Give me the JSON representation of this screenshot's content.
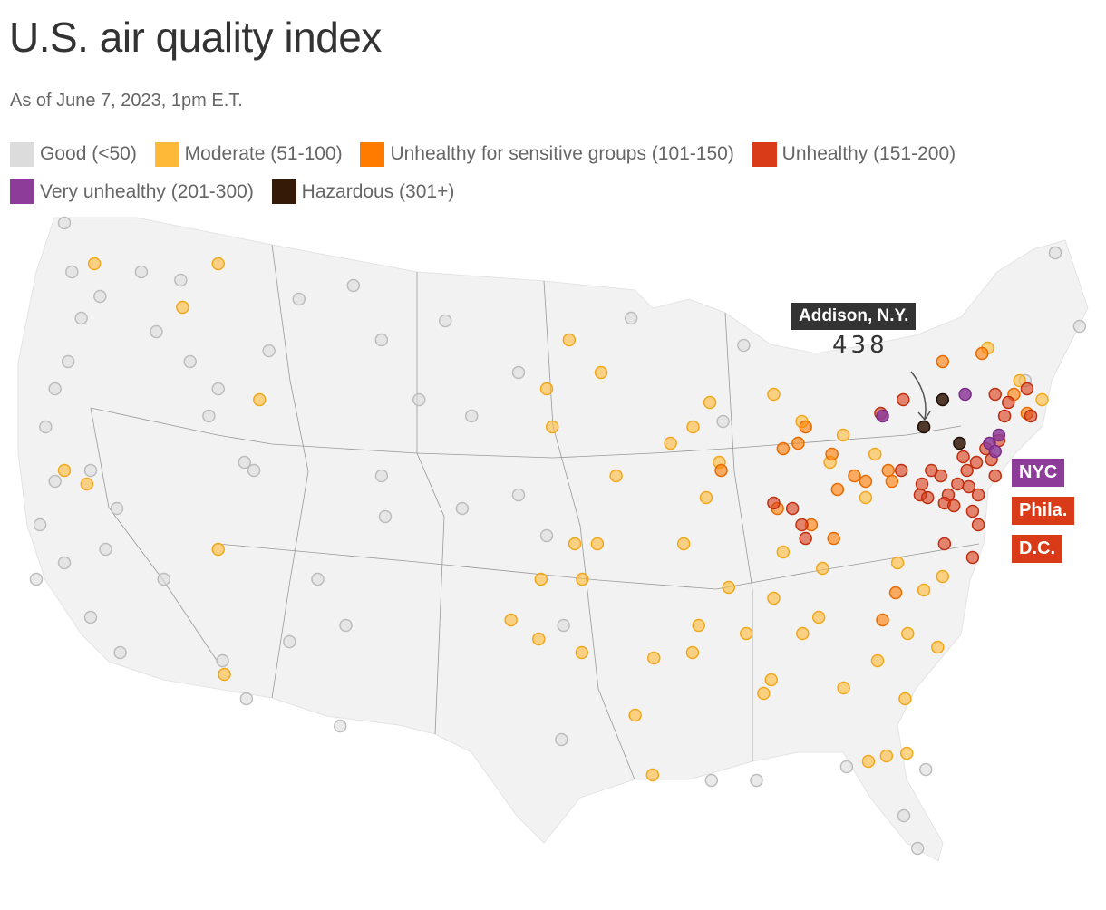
{
  "title": "U.S. air quality index",
  "subtitle": "As of June 7, 2023, 1pm E.T.",
  "legend": [
    {
      "label": "Good (<50)",
      "color": "#dcdcdc"
    },
    {
      "label": "Moderate (51-100)",
      "color": "#ffb938"
    },
    {
      "label": "Unhealthy for sensitive groups (101-150)",
      "color": "#ff7b00"
    },
    {
      "label": "Unhealthy (151-200)",
      "color": "#d93a17"
    },
    {
      "label": "Very unhealthy (201-300)",
      "color": "#8d3c99"
    },
    {
      "label": "Hazardous (301+)",
      "color": "#351a08"
    }
  ],
  "callout": {
    "place": "Addison, N.Y.",
    "value": "438"
  },
  "city_labels": [
    {
      "label": "NYC",
      "color": "#8d3c99"
    },
    {
      "label": "Phila.",
      "color": "#d93a17"
    },
    {
      "label": "D.C.",
      "color": "#d93a17"
    }
  ],
  "stations": [
    [
      -123.4,
      48.9,
      0
    ],
    [
      -123.0,
      47.1,
      0
    ],
    [
      -122.5,
      45.4,
      0
    ],
    [
      -123.2,
      43.8,
      0
    ],
    [
      -124.4,
      41.4,
      0
    ],
    [
      -123.9,
      39.4,
      0
    ],
    [
      -124.7,
      37.8,
      0
    ],
    [
      -123.4,
      36.4,
      0
    ],
    [
      -122,
      34.4,
      0
    ],
    [
      -120.6,
      33.1,
      0
    ],
    [
      -119.3,
      47.1,
      0
    ],
    [
      -117.2,
      46.8,
      0
    ],
    [
      -116.7,
      43.8,
      0
    ],
    [
      -115.2,
      42.8,
      0
    ],
    [
      -115.7,
      41.8,
      0
    ],
    [
      -113.3,
      39.8,
      0
    ],
    [
      -113.8,
      40.1,
      0
    ],
    [
      -110.9,
      46.1,
      0
    ],
    [
      -108,
      46.6,
      0
    ],
    [
      -106.5,
      44.6,
      0
    ],
    [
      -103.1,
      45.3,
      0
    ],
    [
      -99.2,
      43.4,
      0
    ],
    [
      -101.7,
      41.8,
      0
    ],
    [
      -106.5,
      39.6,
      0
    ],
    [
      -106.3,
      38.1,
      0
    ],
    [
      -109.9,
      35.8,
      0
    ],
    [
      -108.4,
      34.1,
      0
    ],
    [
      -109.4,
      30.4,
      0
    ],
    [
      -118.1,
      35.8,
      0
    ],
    [
      -115.2,
      32.8,
      0
    ],
    [
      -114.2,
      31.4,
      0
    ],
    [
      -99.2,
      38.9,
      0
    ],
    [
      -97.7,
      37.4,
      0
    ],
    [
      -96.8,
      34.1,
      0
    ],
    [
      -97.7,
      29.9,
      0
    ],
    [
      -87.2,
      44.4,
      0
    ],
    [
      -93.2,
      45.4,
      0
    ],
    [
      -88.3,
      41.6,
      0
    ],
    [
      -70.6,
      47.8,
      0
    ],
    [
      -69.3,
      45.1,
      0
    ],
    [
      -72.2,
      43.1,
      0
    ],
    [
      -78.5,
      28.8,
      0
    ],
    [
      -80,
      27.1,
      0
    ],
    [
      -79.5,
      25.9,
      0
    ],
    [
      -82.7,
      28.9,
      0
    ],
    [
      -87.6,
      28.4,
      0
    ],
    [
      -90,
      28.4,
      0
    ],
    [
      -120.6,
      38.4,
      0
    ],
    [
      -123.9,
      42.8,
      0
    ],
    [
      -122,
      39.8,
      0
    ],
    [
      -124.9,
      35.8,
      0
    ],
    [
      -121.5,
      46.2,
      0
    ],
    [
      -118.5,
      44.9,
      0
    ],
    [
      -112.5,
      44.2,
      0
    ],
    [
      -104.5,
      42.4,
      0
    ],
    [
      -102.2,
      38.4,
      0
    ],
    [
      -111.5,
      33.5,
      0
    ],
    [
      -121.2,
      36.9,
      0
    ],
    [
      -115.2,
      47.4,
      1
    ],
    [
      -121.8,
      47.4,
      1
    ],
    [
      -117.1,
      45.8,
      1
    ],
    [
      -113,
      42.4,
      1
    ],
    [
      -122.2,
      39.3,
      1
    ],
    [
      -123.4,
      39.8,
      1
    ],
    [
      -115.2,
      36.9,
      1
    ],
    [
      -115.2,
      32.3,
      1
    ],
    [
      -96.5,
      44.6,
      1
    ],
    [
      -94.8,
      43.4,
      1
    ],
    [
      -97.7,
      42.8,
      1
    ],
    [
      -97.4,
      41.4,
      1
    ],
    [
      -94,
      39.6,
      1
    ],
    [
      -96.2,
      37.1,
      1
    ],
    [
      -95,
      37.1,
      1
    ],
    [
      -98,
      35.8,
      1
    ],
    [
      -95.8,
      35.8,
      1
    ],
    [
      -99.6,
      34.3,
      1
    ],
    [
      -98.2,
      33.6,
      1
    ],
    [
      -96,
      33.1,
      1
    ],
    [
      -93.6,
      30.8,
      1
    ],
    [
      -93.1,
      28.6,
      1
    ],
    [
      -92.2,
      32.9,
      1
    ],
    [
      -89,
      42.3,
      1
    ],
    [
      -89.9,
      41.4,
      1
    ],
    [
      -91.1,
      40.8,
      1
    ],
    [
      -90.4,
      37.1,
      1
    ],
    [
      -89.2,
      38.8,
      1
    ],
    [
      -88.5,
      40.1,
      1
    ],
    [
      -85.6,
      42.6,
      1
    ],
    [
      -84.1,
      41.6,
      1
    ],
    [
      -85.1,
      36.8,
      1
    ],
    [
      -85.6,
      35.1,
      1
    ],
    [
      -87.1,
      33.8,
      1
    ],
    [
      -86.1,
      32.1,
      1
    ],
    [
      -86.6,
      31.6,
      1
    ],
    [
      -84.1,
      33.8,
      1
    ],
    [
      -83.2,
      34.4,
      1
    ],
    [
      -82.3,
      31.8,
      1
    ],
    [
      -80.3,
      32.8,
      1
    ],
    [
      -79.1,
      31.4,
      1
    ],
    [
      -79.4,
      29.4,
      1
    ],
    [
      -81.5,
      29.1,
      1
    ],
    [
      -80.5,
      29.3,
      1
    ],
    [
      -77.6,
      35.4,
      1
    ],
    [
      -76.6,
      35.9,
      1
    ],
    [
      -79,
      36.4,
      1
    ],
    [
      -78.5,
      33.8,
      1
    ],
    [
      -77,
      33.3,
      1
    ],
    [
      -82.6,
      40.1,
      1
    ],
    [
      -81.9,
      41.1,
      1
    ],
    [
      -80.2,
      40.4,
      1
    ],
    [
      -74.2,
      44.3,
      1
    ],
    [
      -71.3,
      42.4,
      1
    ],
    [
      -72.5,
      43.1,
      1
    ],
    [
      -89.6,
      34.1,
      1
    ],
    [
      -90.1,
      33.1,
      1
    ],
    [
      -80.7,
      38.8,
      1
    ],
    [
      -88.0,
      35.5,
      1
    ],
    [
      -83.0,
      36.2,
      1
    ],
    [
      -84.3,
      40.8,
      2
    ],
    [
      -83.9,
      41.4,
      2
    ],
    [
      -85.1,
      40.6,
      2
    ],
    [
      -88.4,
      39.8,
      2
    ],
    [
      -85.4,
      38.4,
      2
    ],
    [
      -82.5,
      40.4,
      2
    ],
    [
      -81.3,
      39.6,
      2
    ],
    [
      -80.7,
      39.4,
      2
    ],
    [
      -82.2,
      39.1,
      2
    ],
    [
      -79.5,
      39.8,
      2
    ],
    [
      -76.6,
      43.8,
      2
    ],
    [
      -74.5,
      44.1,
      2
    ],
    [
      -72.8,
      42.6,
      2
    ],
    [
      -72.1,
      41.9,
      2
    ],
    [
      -79.1,
      35.3,
      2
    ],
    [
      -79.8,
      34.3,
      2
    ],
    [
      -82.4,
      37.3,
      2
    ],
    [
      -83.6,
      37.8,
      2
    ],
    [
      -79.3,
      39.4,
      2
    ],
    [
      -79.9,
      41.9,
      3
    ],
    [
      -78.7,
      42.4,
      3
    ],
    [
      -73.8,
      42.6,
      3
    ],
    [
      -73.3,
      41.8,
      3
    ],
    [
      -73.1,
      42.3,
      3
    ],
    [
      -73.6,
      40.9,
      3
    ],
    [
      -74.3,
      40.6,
      3
    ],
    [
      -74.8,
      40.1,
      3
    ],
    [
      -75.5,
      40.3,
      3
    ],
    [
      -75.3,
      39.8,
      3
    ],
    [
      -75.8,
      39.3,
      3
    ],
    [
      -76.3,
      38.9,
      3
    ],
    [
      -76.5,
      38.6,
      3
    ],
    [
      -76.7,
      39.6,
      3
    ],
    [
      -77.2,
      39.8,
      3
    ],
    [
      -77.7,
      39.3,
      3
    ],
    [
      -76,
      38.5,
      3
    ],
    [
      -75,
      38.3,
      3
    ],
    [
      -74.7,
      37.8,
      3
    ],
    [
      -76.5,
      37.1,
      3
    ],
    [
      -75,
      36.6,
      3
    ],
    [
      -74.7,
      38.9,
      3
    ],
    [
      -73.8,
      39.6,
      3
    ],
    [
      -71.9,
      41.8,
      3
    ],
    [
      -72.1,
      42.8,
      3
    ],
    [
      -85.6,
      38.6,
      3
    ],
    [
      -84.6,
      38.4,
      3
    ],
    [
      -84.1,
      37.8,
      3
    ],
    [
      -83.9,
      37.3,
      3
    ],
    [
      -77.8,
      38.9,
      3
    ],
    [
      -78.8,
      39.8,
      3
    ],
    [
      -77.4,
      38.8,
      3
    ],
    [
      -74.0,
      40.2,
      3
    ],
    [
      -75.2,
      39.2,
      3
    ],
    [
      -75.4,
      42.6,
      4
    ],
    [
      -79.8,
      41.8,
      4
    ],
    [
      -74.1,
      40.8,
      4
    ],
    [
      -73.6,
      41.1,
      4
    ],
    [
      -73.8,
      40.5,
      4
    ],
    [
      -76.6,
      42.4,
      5
    ],
    [
      -77.6,
      41.4,
      5
    ],
    [
      -75.7,
      40.8,
      5
    ]
  ]
}
